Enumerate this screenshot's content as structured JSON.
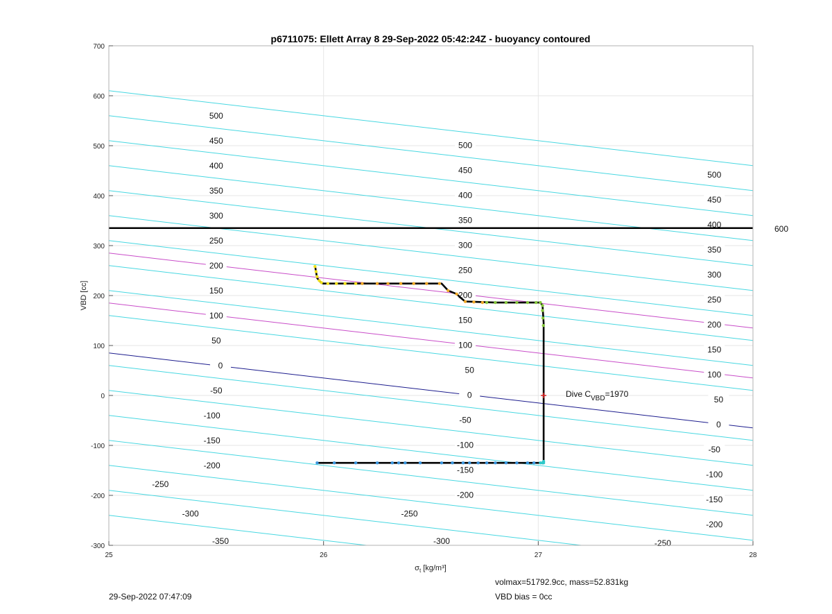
{
  "chart_data": {
    "type": "line",
    "title": "p6711075: Ellett Array 8 29-Sep-2022 05:42:24Z - buoyancy contoured",
    "xlabel": "σt [kg/m³]",
    "xlabel_symbol": "σ",
    "xlabel_sub": "t",
    "xlabel_units": "[kg/m³]",
    "ylabel": "VBD [cc]",
    "xlim": [
      25,
      28
    ],
    "ylim": [
      -300,
      700
    ],
    "xticks": [
      25,
      26,
      27,
      28
    ],
    "yticks": [
      -300,
      -200,
      -100,
      0,
      100,
      200,
      300,
      400,
      500,
      600,
      700
    ],
    "grid": true,
    "colors": {
      "contour": "#46d7e1",
      "zero_contour": "#1a1a8c",
      "mark_contour": "#c84bc8",
      "limit_line": "#000000",
      "path": "#000000",
      "cvbd_marker": "#e02020"
    },
    "contours": {
      "slope_cc_per_kg_m3": -50,
      "levels_cyan": [
        -350,
        -300,
        -250,
        -200,
        -150,
        -100,
        -50,
        50,
        100,
        150,
        200,
        250,
        300,
        350,
        400,
        450,
        500
      ],
      "level_zero": 0,
      "marked_lines_vbd_at_sigma25": [
        285,
        185
      ],
      "label_positions": [
        {
          "text": "500",
          "x": 25.5,
          "y": 560
        },
        {
          "text": "450",
          "x": 25.5,
          "y": 510
        },
        {
          "text": "400",
          "x": 25.5,
          "y": 460
        },
        {
          "text": "350",
          "x": 25.5,
          "y": 410
        },
        {
          "text": "300",
          "x": 25.5,
          "y": 360
        },
        {
          "text": "250",
          "x": 25.5,
          "y": 310
        },
        {
          "text": "200",
          "x": 25.5,
          "y": 260
        },
        {
          "text": "150",
          "x": 25.5,
          "y": 210
        },
        {
          "text": "100",
          "x": 25.5,
          "y": 160
        },
        {
          "text": "50",
          "x": 25.5,
          "y": 110
        },
        {
          "text": "0",
          "x": 25.52,
          "y": 60
        },
        {
          "text": "-50",
          "x": 25.5,
          "y": 10
        },
        {
          "text": "-100",
          "x": 25.48,
          "y": -40
        },
        {
          "text": "-150",
          "x": 25.48,
          "y": -90
        },
        {
          "text": "-200",
          "x": 25.48,
          "y": -140
        },
        {
          "text": "-250",
          "x": 25.24,
          "y": -178
        },
        {
          "text": "-300",
          "x": 25.38,
          "y": -237
        },
        {
          "text": "-350",
          "x": 25.52,
          "y": -292
        },
        {
          "text": "500",
          "x": 26.66,
          "y": 501
        },
        {
          "text": "450",
          "x": 26.66,
          "y": 451
        },
        {
          "text": "400",
          "x": 26.66,
          "y": 401
        },
        {
          "text": "350",
          "x": 26.66,
          "y": 351
        },
        {
          "text": "300",
          "x": 26.66,
          "y": 301
        },
        {
          "text": "250",
          "x": 26.66,
          "y": 251
        },
        {
          "text": "200",
          "x": 26.66,
          "y": 201
        },
        {
          "text": "150",
          "x": 26.66,
          "y": 151
        },
        {
          "text": "100",
          "x": 26.66,
          "y": 101
        },
        {
          "text": "50",
          "x": 26.68,
          "y": 51
        },
        {
          "text": "0",
          "x": 26.68,
          "y": 1
        },
        {
          "text": "-50",
          "x": 26.66,
          "y": -49
        },
        {
          "text": "-100",
          "x": 26.66,
          "y": -99
        },
        {
          "text": "-150",
          "x": 26.66,
          "y": -149
        },
        {
          "text": "-200",
          "x": 26.66,
          "y": -199
        },
        {
          "text": "-250",
          "x": 26.4,
          "y": -237
        },
        {
          "text": "-300",
          "x": 26.55,
          "y": -292
        },
        {
          "text": "500",
          "x": 27.82,
          "y": 442
        },
        {
          "text": "450",
          "x": 27.82,
          "y": 392
        },
        {
          "text": "400",
          "x": 27.82,
          "y": 342
        },
        {
          "text": "350",
          "x": 27.82,
          "y": 292
        },
        {
          "text": "300",
          "x": 27.82,
          "y": 242
        },
        {
          "text": "250",
          "x": 27.82,
          "y": 192
        },
        {
          "text": "200",
          "x": 27.82,
          "y": 142
        },
        {
          "text": "150",
          "x": 27.82,
          "y": 92
        },
        {
          "text": "100",
          "x": 27.82,
          "y": 42
        },
        {
          "text": "50",
          "x": 27.84,
          "y": -8
        },
        {
          "text": "0",
          "x": 27.84,
          "y": -58
        },
        {
          "text": "-50",
          "x": 27.82,
          "y": -108
        },
        {
          "text": "-100",
          "x": 27.82,
          "y": -158
        },
        {
          "text": "-150",
          "x": 27.82,
          "y": -208
        },
        {
          "text": "-200",
          "x": 27.82,
          "y": -258
        },
        {
          "text": "-250",
          "x": 27.58,
          "y": -296
        }
      ]
    },
    "vbd_max_line": {
      "y": 335,
      "label": "600"
    },
    "dive_path": {
      "x": [
        25.96,
        25.97,
        25.99,
        26.0,
        26.2,
        26.4,
        26.55,
        26.58,
        26.62,
        26.64,
        26.66,
        26.8,
        26.95,
        27.01,
        27.02,
        27.025,
        27.025,
        27.02,
        26.6,
        26.3,
        25.97
      ],
      "y": [
        260,
        235,
        225,
        224,
        224,
        224,
        224,
        210,
        203,
        195,
        188,
        186,
        186,
        186,
        180,
        145,
        -135,
        -135,
        -135,
        -135,
        -135
      ]
    },
    "point_series": [
      {
        "color": "#f2e21a",
        "x": [
          25.96,
          25.965,
          25.97,
          25.98,
          25.99,
          26.02,
          26.06,
          26.1,
          26.15
        ],
        "y": [
          258,
          248,
          238,
          230,
          226,
          224,
          224,
          224,
          224
        ]
      },
      {
        "color": "#f0a828",
        "x": [
          26.18,
          26.25,
          26.3,
          26.36,
          26.42,
          26.48,
          26.54,
          26.58,
          26.62,
          26.66,
          26.7,
          26.74
        ],
        "y": [
          224,
          224,
          224,
          224,
          224,
          224,
          224,
          210,
          203,
          188,
          187,
          186
        ]
      },
      {
        "color": "#86c83c",
        "x": [
          26.76,
          26.8,
          26.85,
          26.9,
          26.95,
          26.99,
          27.01,
          27.02,
          27.02,
          27.022,
          27.024
        ],
        "y": [
          186,
          186,
          186,
          186,
          186,
          186,
          186,
          180,
          170,
          155,
          140
        ]
      },
      {
        "color": "#3a96e0",
        "x": [
          25.97,
          26.05,
          26.15,
          26.25,
          26.32,
          26.35,
          26.38,
          26.45,
          26.55,
          26.6,
          26.65,
          26.68,
          26.72,
          26.76,
          26.8,
          26.85,
          26.9,
          26.95,
          26.98,
          27.02
        ],
        "y": [
          -135,
          -135,
          -135,
          -135,
          -135,
          -135,
          -135,
          -135,
          -135,
          -135,
          -135,
          -135,
          -135,
          -135,
          -135,
          -135,
          -135,
          -135,
          -135,
          -135
        ]
      },
      {
        "color": "#2ec8c8",
        "x": [
          27.025,
          27.025,
          27.02,
          27.01
        ],
        "y": [
          -135,
          -132,
          -135,
          -135
        ]
      }
    ],
    "cvbd_marker": {
      "x": 27.025,
      "y": 0
    },
    "annotation": {
      "prefix": "Dive C",
      "sub": "VBD",
      "suffix": "=1970"
    },
    "footer": {
      "timestamp": "29-Sep-2022 07:47:09",
      "volmax_mass": "volmax=51792.9cc, mass=52.831kg",
      "vbd_bias": "VBD bias = 0cc"
    }
  }
}
